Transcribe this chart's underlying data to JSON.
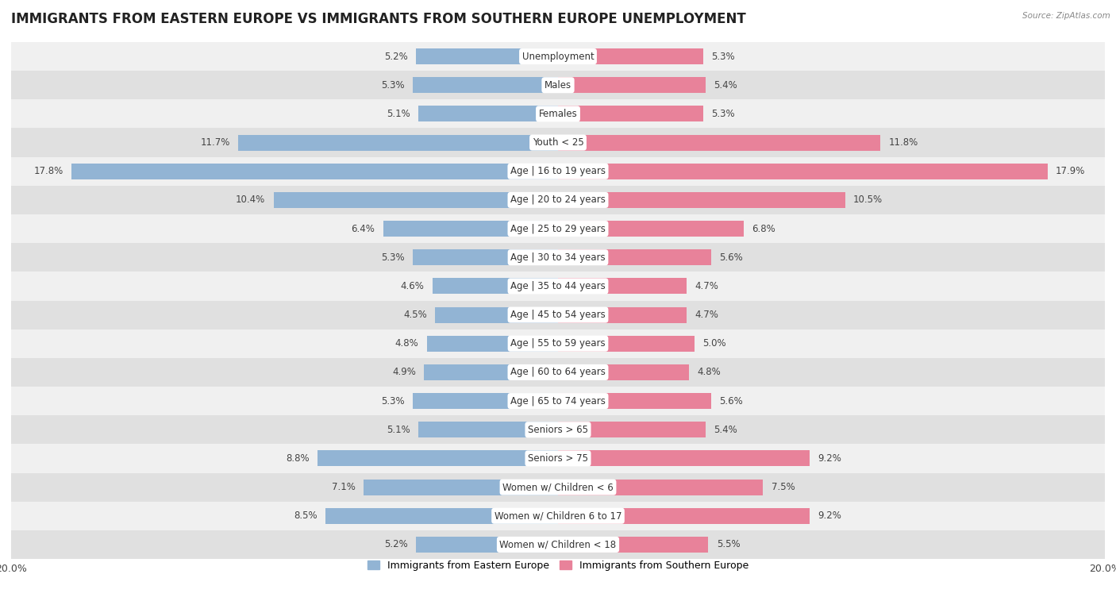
{
  "title": "IMMIGRANTS FROM EASTERN EUROPE VS IMMIGRANTS FROM SOUTHERN EUROPE UNEMPLOYMENT",
  "source": "Source: ZipAtlas.com",
  "categories": [
    "Unemployment",
    "Males",
    "Females",
    "Youth < 25",
    "Age | 16 to 19 years",
    "Age | 20 to 24 years",
    "Age | 25 to 29 years",
    "Age | 30 to 34 years",
    "Age | 35 to 44 years",
    "Age | 45 to 54 years",
    "Age | 55 to 59 years",
    "Age | 60 to 64 years",
    "Age | 65 to 74 years",
    "Seniors > 65",
    "Seniors > 75",
    "Women w/ Children < 6",
    "Women w/ Children 6 to 17",
    "Women w/ Children < 18"
  ],
  "eastern_europe": [
    5.2,
    5.3,
    5.1,
    11.7,
    17.8,
    10.4,
    6.4,
    5.3,
    4.6,
    4.5,
    4.8,
    4.9,
    5.3,
    5.1,
    8.8,
    7.1,
    8.5,
    5.2
  ],
  "southern_europe": [
    5.3,
    5.4,
    5.3,
    11.8,
    17.9,
    10.5,
    6.8,
    5.6,
    4.7,
    4.7,
    5.0,
    4.8,
    5.6,
    5.4,
    9.2,
    7.5,
    9.2,
    5.5
  ],
  "eastern_color": "#92b4d4",
  "southern_color": "#e8829a",
  "bar_height": 0.55,
  "x_max": 20.0,
  "bg_light": "#f0f0f0",
  "bg_dark": "#e0e0e0",
  "title_fontsize": 12,
  "label_fontsize": 8.5,
  "value_fontsize": 8.5,
  "legend_fontsize": 9
}
